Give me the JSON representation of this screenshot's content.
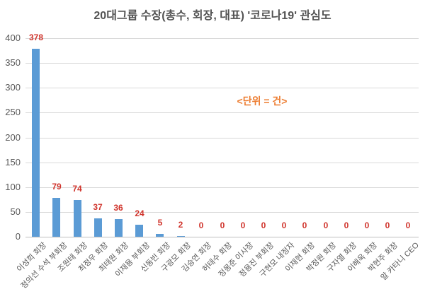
{
  "chart_data": {
    "type": "bar",
    "title": "20대그룹 수장(총수, 회장, 대표) '코로나19' 관심도",
    "unit_annotation": "<단위 = 건>",
    "categories": [
      "이성희 회장",
      "정의선 수석 부회장",
      "조원태 회장",
      "최정우 회장",
      "최태원 회장",
      "이재용 부회장",
      "신동빈 회장",
      "구광모 회장",
      "김승연 회장",
      "허태수 회장",
      "정몽준 이사장",
      "정용진 부회장",
      "구현모 내정자",
      "이재현 회장",
      "박정원 회장",
      "구자열 회장",
      "이해욱 회장",
      "박현주 회장",
      "알 카타니 CEO"
    ],
    "values": [
      378,
      79,
      74,
      37,
      36,
      24,
      5,
      2,
      0,
      0,
      0,
      0,
      0,
      0,
      0,
      0,
      0,
      0,
      0
    ],
    "xlabel": "",
    "ylabel": "",
    "ylim": [
      0,
      400
    ],
    "yticks": [
      400,
      350,
      300,
      250,
      200,
      150,
      100,
      50,
      0
    ],
    "grid": true,
    "legend": "none",
    "data_labels": "above-bars",
    "colors": {
      "bar": "#5B9BD5",
      "value_label": "#d0342c",
      "annotation": "#ED7D31",
      "axis_text": "#595959",
      "title_text": "#525252",
      "gridline": "#d9d9d9",
      "axis_line": "#bfbfbf",
      "background": "#ffffff"
    }
  }
}
